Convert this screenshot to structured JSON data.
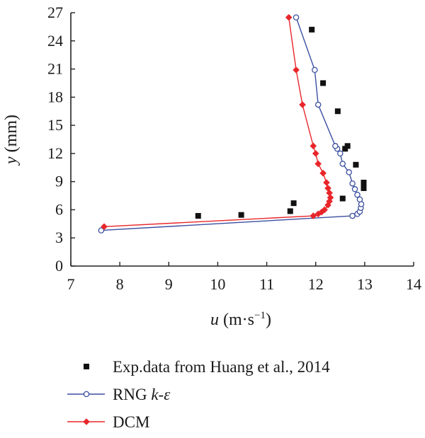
{
  "chart_data": {
    "type": "line",
    "xlabel": {
      "var": "u",
      "unit_open": " (m·s",
      "unit_sup": "−1",
      "unit_close": ")"
    },
    "ylabel": {
      "var": "y",
      "unit": " (mm)"
    },
    "xlim": [
      7,
      14
    ],
    "ylim": [
      0,
      27
    ],
    "xticks": [
      "7",
      "8",
      "9",
      "10",
      "11",
      "12",
      "13",
      "14"
    ],
    "yticks": [
      "0",
      "3",
      "6",
      "9",
      "12",
      "15",
      "18",
      "21",
      "24",
      "27"
    ],
    "grid": false,
    "legend_position": "bottom",
    "series": [
      {
        "name": "Exp.data from Huang et al., 2014",
        "legend_text": [
          {
            "t": "Exp.data from Huang et al., 2014",
            "i": false
          }
        ],
        "style": "markers",
        "marker": "square",
        "color": "#111111",
        "x": [
          9.6,
          10.48,
          11.48,
          11.55,
          12.55,
          12.6,
          12.65,
          12.82,
          12.98,
          12.98,
          12.45,
          12.15,
          11.92
        ],
        "y": [
          5.35,
          5.45,
          5.85,
          6.7,
          7.2,
          12.5,
          12.8,
          10.8,
          8.3,
          8.9,
          16.5,
          19.5,
          25.2
        ]
      },
      {
        "name": "RNG k-ε",
        "legend_text": [
          {
            "t": "RNG ",
            "i": false
          },
          {
            "t": "k",
            "i": true
          },
          {
            "t": "-",
            "i": false
          },
          {
            "t": "ε",
            "i": true
          }
        ],
        "style": "line+markers",
        "marker": "circle-open",
        "color": "#3b4fa0",
        "x": [
          7.62,
          12.75,
          12.85,
          12.9,
          12.92,
          12.93,
          12.9,
          12.85,
          12.8,
          12.75,
          12.68,
          12.55,
          12.5,
          12.44,
          12.4,
          12.05,
          11.98,
          11.6
        ],
        "y": [
          3.8,
          5.35,
          5.55,
          5.8,
          6.2,
          6.6,
          7.1,
          7.6,
          8.2,
          8.8,
          10.0,
          10.9,
          12.0,
          12.5,
          12.8,
          17.2,
          20.9,
          26.5
        ]
      },
      {
        "name": "DCM",
        "legend_text": [
          {
            "t": "DCM",
            "i": false
          }
        ],
        "style": "line+markers",
        "marker": "diamond",
        "color": "#e8262a",
        "x": [
          7.68,
          11.95,
          12.05,
          12.12,
          12.18,
          12.25,
          12.28,
          12.3,
          12.28,
          12.25,
          12.22,
          12.15,
          12.05,
          12.0,
          11.95,
          11.73,
          11.6,
          11.45
        ],
        "y": [
          4.2,
          5.35,
          5.55,
          5.75,
          6.0,
          6.5,
          6.9,
          7.3,
          7.8,
          8.3,
          8.9,
          9.9,
          10.9,
          12.0,
          12.8,
          17.2,
          20.9,
          26.5
        ]
      }
    ]
  }
}
